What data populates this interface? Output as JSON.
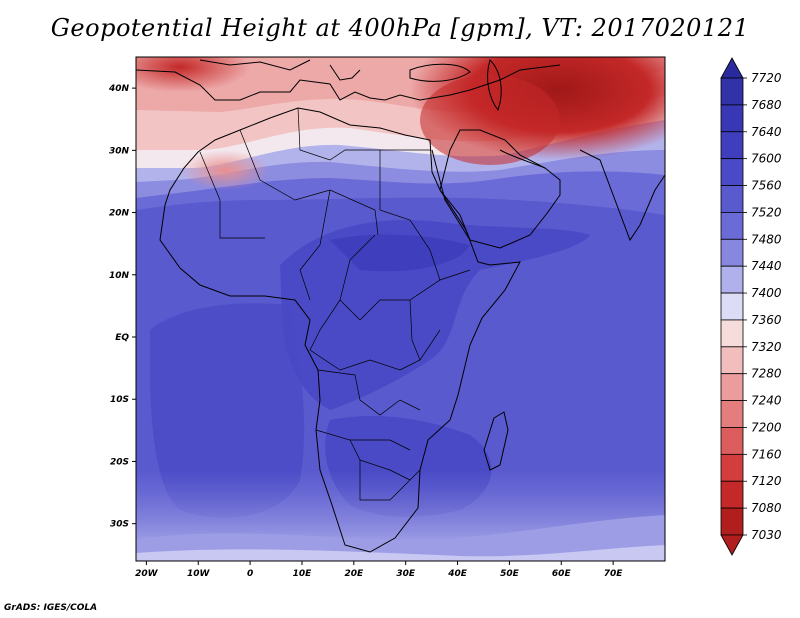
{
  "title": "Geopotential Height at 400hPa [gpm], VT: 2017020121",
  "credit": "GrADS: IGES/COLA",
  "map": {
    "lon_range": [
      -22,
      80
    ],
    "lat_range": [
      -36,
      45
    ],
    "lon_ticks": [
      {
        "value": -20,
        "label": "20W"
      },
      {
        "value": -10,
        "label": "10W"
      },
      {
        "value": 0,
        "label": "0"
      },
      {
        "value": 10,
        "label": "10E"
      },
      {
        "value": 20,
        "label": "20E"
      },
      {
        "value": 30,
        "label": "30E"
      },
      {
        "value": 40,
        "label": "40E"
      },
      {
        "value": 50,
        "label": "50E"
      },
      {
        "value": 60,
        "label": "60E"
      },
      {
        "value": 70,
        "label": "70E"
      }
    ],
    "lat_ticks": [
      {
        "value": 40,
        "label": "40N"
      },
      {
        "value": 30,
        "label": "30N"
      },
      {
        "value": 20,
        "label": "20N"
      },
      {
        "value": 10,
        "label": "10N"
      },
      {
        "value": 0,
        "label": "EQ"
      },
      {
        "value": -10,
        "label": "10S"
      },
      {
        "value": -20,
        "label": "20S"
      },
      {
        "value": -30,
        "label": "30S"
      }
    ]
  },
  "colorbar": {
    "levels": [
      "7720",
      "7680",
      "7640",
      "7600",
      "7560",
      "7520",
      "7480",
      "7440",
      "7400",
      "7360",
      "7320",
      "7280",
      "7240",
      "7200",
      "7160",
      "7120",
      "7080",
      "7030"
    ],
    "colors": [
      "#2a2a9e",
      "#3131a8",
      "#3838b4",
      "#3f3fbd",
      "#4a4ac6",
      "#5a5acf",
      "#6b6bd8",
      "#8787e0",
      "#b0b0ec",
      "#dcdcf6",
      "#f7dcdc",
      "#f2bdbd",
      "#eb9d9d",
      "#e47d7d",
      "#dc5d5d",
      "#d23e3e",
      "#c42828",
      "#b01e1e"
    ]
  }
}
